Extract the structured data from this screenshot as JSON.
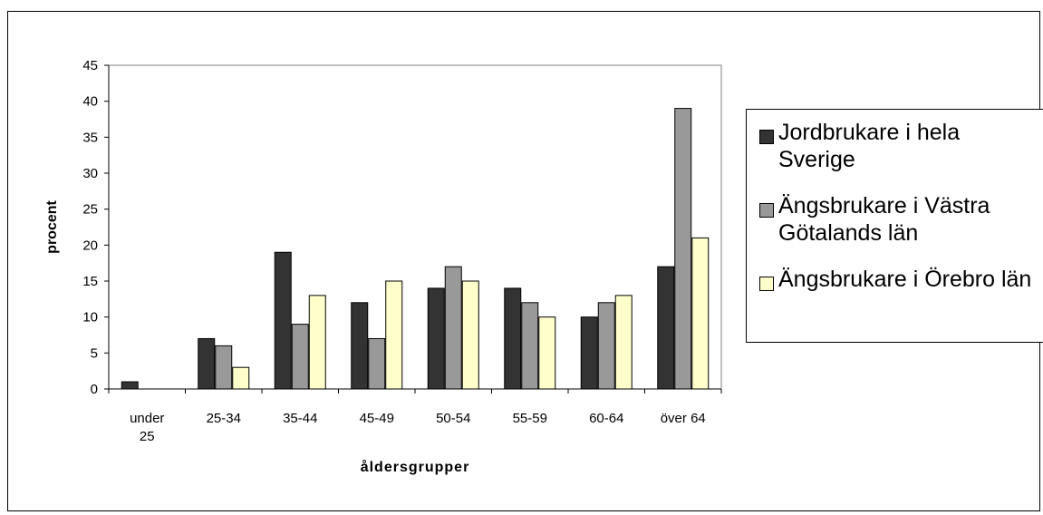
{
  "chart_data": {
    "type": "bar",
    "xlabel": "åldersgrupper",
    "ylabel": "procent",
    "ylim": [
      0,
      45
    ],
    "yticks": [
      "0",
      "5",
      "10",
      "15",
      "20",
      "25",
      "30",
      "35",
      "40",
      "45"
    ],
    "categories": [
      "under 25",
      "25-34",
      "35-44",
      "45-49",
      "50-54",
      "55-59",
      "60-64",
      "över 64"
    ],
    "series": [
      {
        "name": "Jordbrukare i hela Sverige",
        "color": "#333333",
        "values": [
          1,
          7,
          19,
          12,
          14,
          14,
          10,
          17
        ]
      },
      {
        "name": "Ängsbrukare i Västra Götalands län",
        "color": "#999999",
        "values": [
          0,
          6,
          9,
          7,
          17,
          12,
          12,
          39
        ]
      },
      {
        "name": "Ängsbrukare i Örebro län",
        "color": "#ffffcc",
        "values": [
          0,
          3,
          13,
          15,
          15,
          10,
          13,
          21
        ]
      }
    ],
    "legend_position": "right",
    "grid": false
  }
}
